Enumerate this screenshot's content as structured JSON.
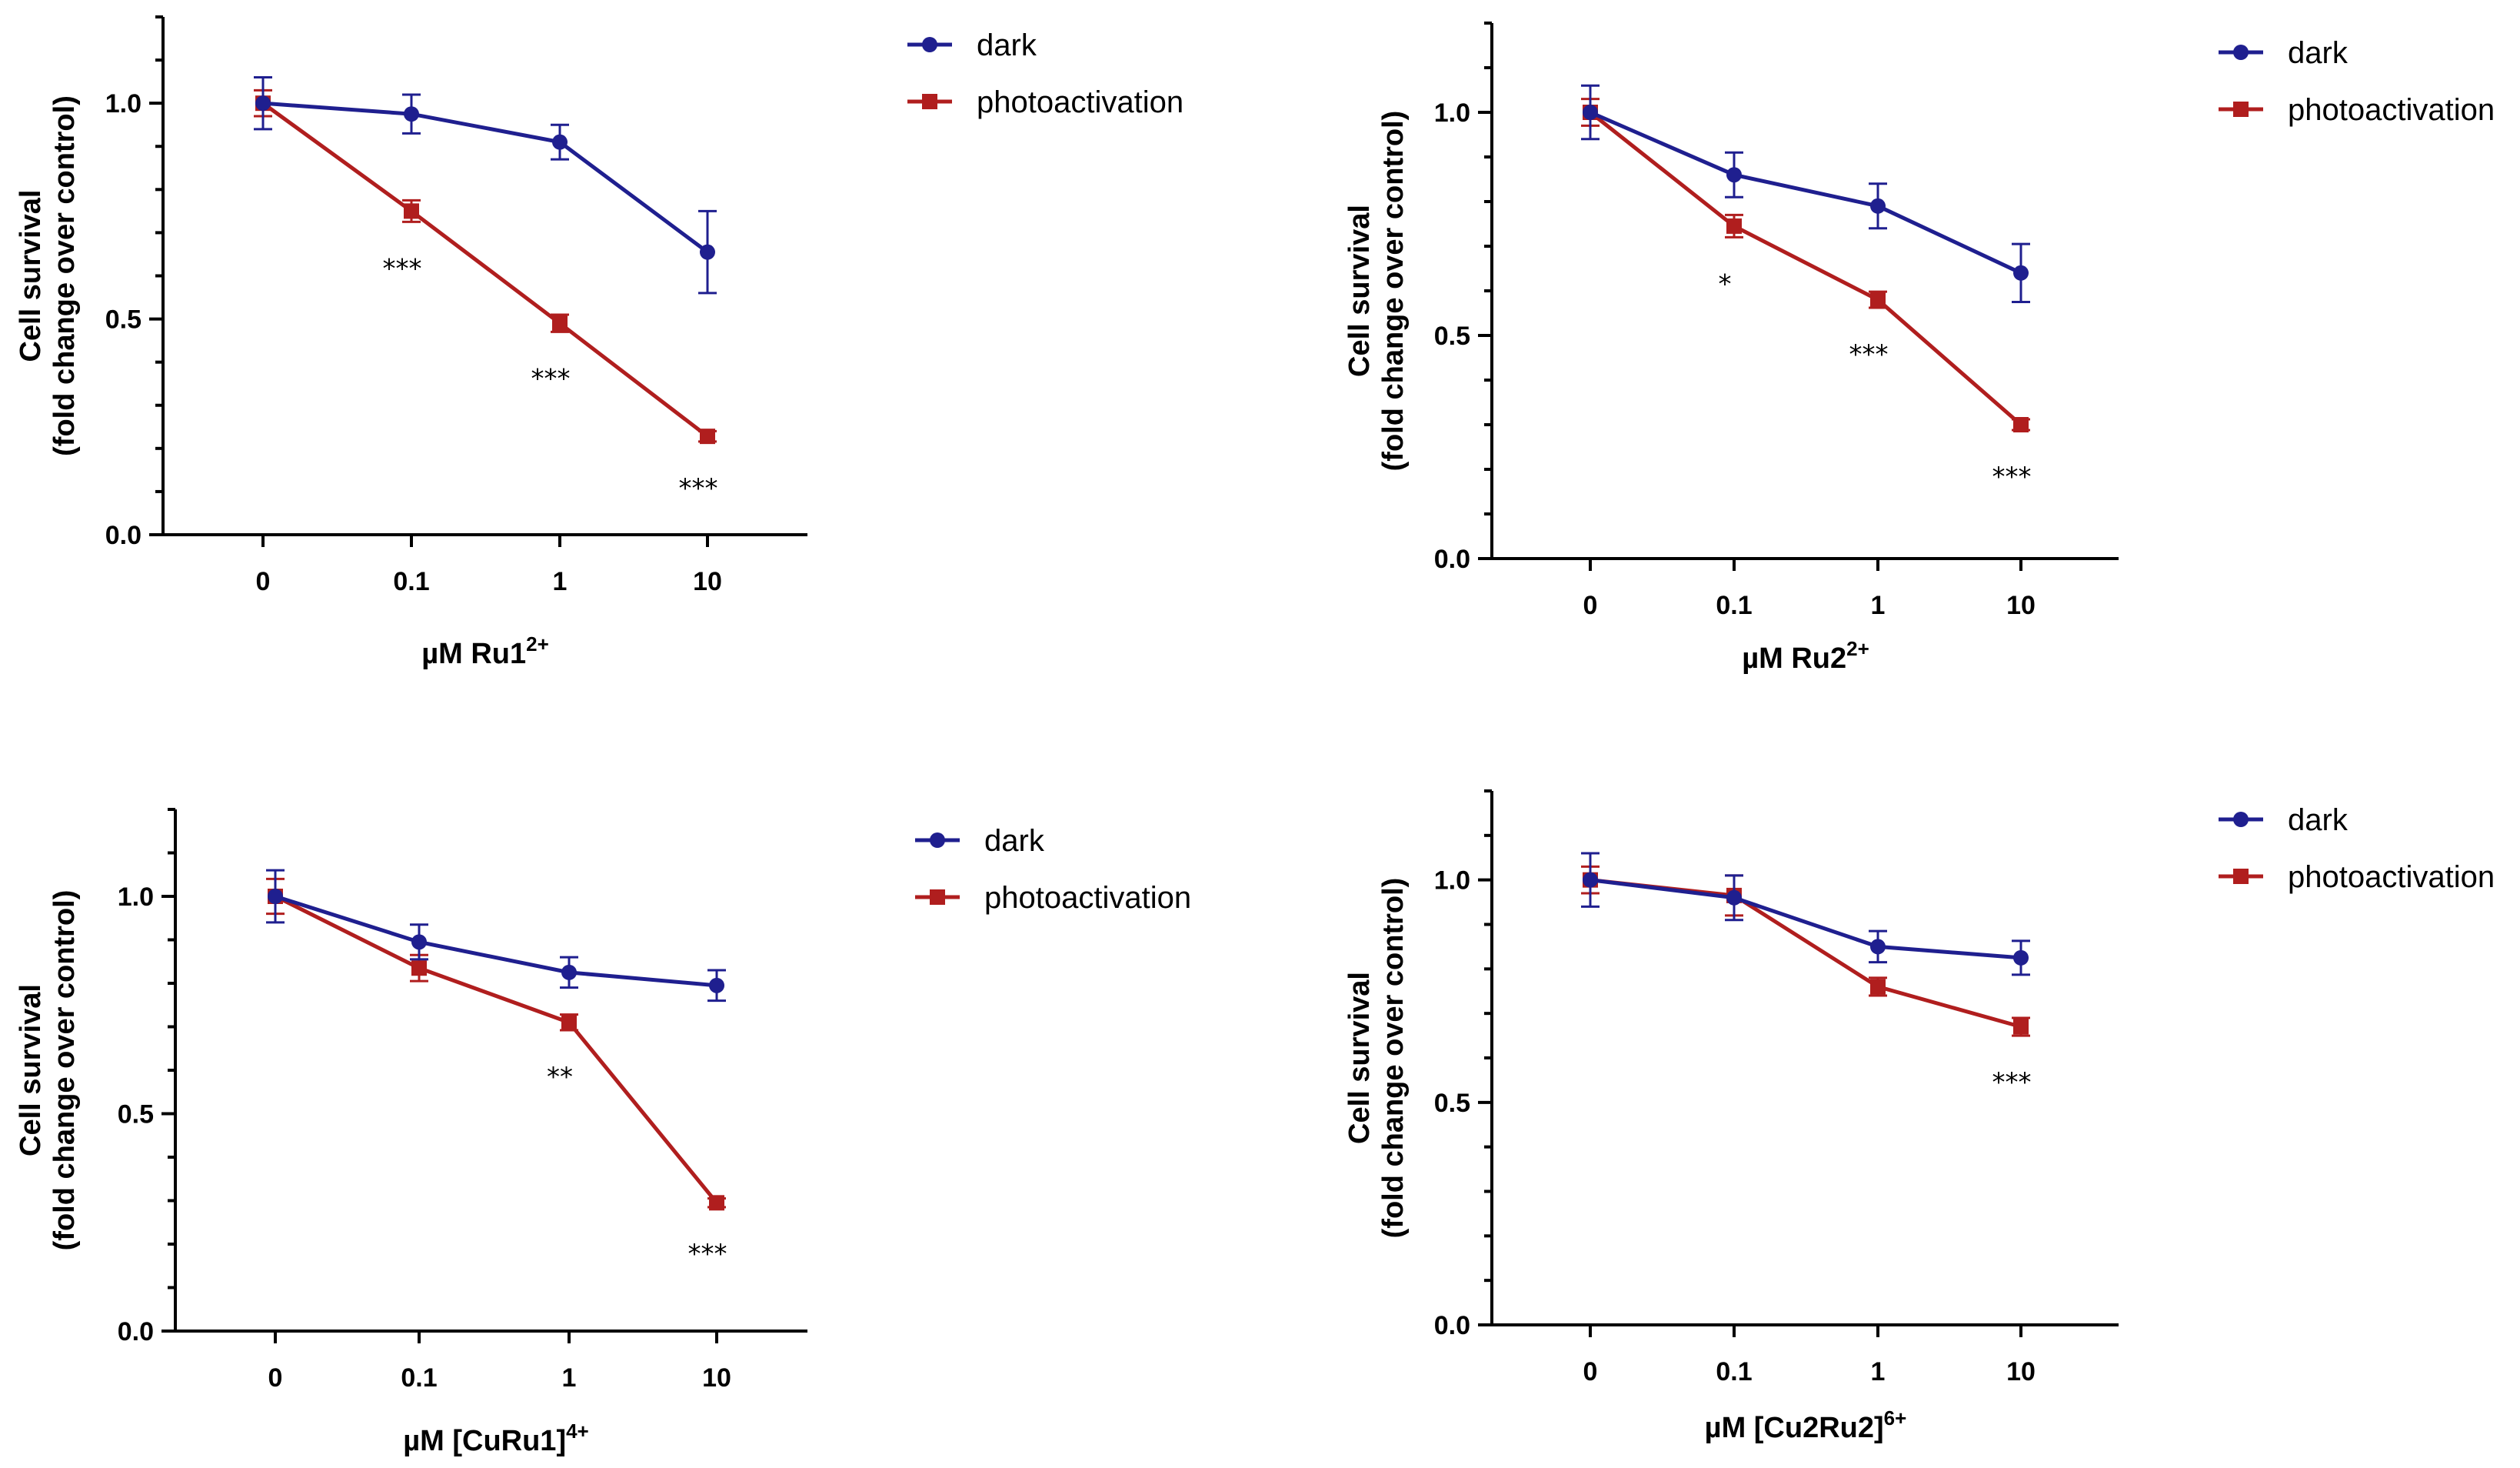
{
  "legend": {
    "dark": "dark",
    "photoactivation": "photoactivation"
  },
  "colors": {
    "dark": "#1f1f8f",
    "photoactivation": "#b01e1e"
  },
  "chart_data": [
    {
      "type": "line",
      "panel": "top-left",
      "categories": [
        "0",
        "0.1",
        "1",
        "10"
      ],
      "series": [
        {
          "name": "dark",
          "values": [
            1.0,
            0.975,
            0.91,
            0.655
          ],
          "errors": [
            0.06,
            0.045,
            0.04,
            0.095
          ]
        },
        {
          "name": "photoactivation",
          "values": [
            1.0,
            0.75,
            0.49,
            0.228
          ],
          "errors": [
            0.03,
            0.025,
            0.02,
            0.012
          ]
        }
      ],
      "annotations": [
        "",
        "***",
        "***",
        "***"
      ],
      "xlabel": "µM Ru1",
      "xlabel_sup": "2+",
      "ylabel_line1": "Cell survival",
      "ylabel_line2": "(fold change over control)",
      "yticks": [
        "0.0",
        "0.5",
        "1.0"
      ],
      "ylim": [
        0,
        1.2
      ],
      "legend_position": "top-right"
    },
    {
      "type": "line",
      "panel": "top-right",
      "categories": [
        "0",
        "0.1",
        "1",
        "10"
      ],
      "series": [
        {
          "name": "dark",
          "values": [
            1.0,
            0.86,
            0.79,
            0.64
          ],
          "errors": [
            0.06,
            0.05,
            0.05,
            0.065
          ]
        },
        {
          "name": "photoactivation",
          "values": [
            1.0,
            0.745,
            0.58,
            0.3
          ],
          "errors": [
            0.03,
            0.025,
            0.018,
            0.012
          ]
        }
      ],
      "annotations": [
        "",
        "*",
        "***",
        "***"
      ],
      "xlabel": "µM Ru2",
      "xlabel_sup": "2+",
      "ylabel_line1": "Cell survival",
      "ylabel_line2": "(fold change over control)",
      "yticks": [
        "0.0",
        "0.5",
        "1.0"
      ],
      "ylim": [
        0,
        1.2
      ],
      "legend_position": "top-right"
    },
    {
      "type": "line",
      "panel": "bottom-left",
      "categories": [
        "0",
        "0.1",
        "1",
        "10"
      ],
      "series": [
        {
          "name": "dark",
          "values": [
            1.0,
            0.895,
            0.825,
            0.795
          ],
          "errors": [
            0.06,
            0.04,
            0.035,
            0.035
          ]
        },
        {
          "name": "photoactivation",
          "values": [
            1.0,
            0.835,
            0.71,
            0.295
          ],
          "errors": [
            0.04,
            0.03,
            0.018,
            0.01
          ]
        }
      ],
      "annotations": [
        "",
        "",
        "**",
        "***"
      ],
      "xlabel": "µM [CuRu1]",
      "xlabel_sup": "4+",
      "ylabel_line1": "Cell survival",
      "ylabel_line2": "(fold change over control)",
      "yticks": [
        "0.0",
        "0.5",
        "1.0"
      ],
      "ylim": [
        0,
        1.2
      ],
      "legend_position": "top-right"
    },
    {
      "type": "line",
      "panel": "bottom-right",
      "categories": [
        "0",
        "0.1",
        "1",
        "10"
      ],
      "series": [
        {
          "name": "dark",
          "values": [
            1.0,
            0.96,
            0.85,
            0.825
          ],
          "errors": [
            0.06,
            0.05,
            0.035,
            0.038
          ]
        },
        {
          "name": "photoactivation",
          "values": [
            1.0,
            0.965,
            0.76,
            0.67
          ],
          "errors": [
            0.03,
            0.045,
            0.02,
            0.02
          ]
        }
      ],
      "annotations": [
        "",
        "",
        "",
        "***"
      ],
      "xlabel": "µM [Cu2Ru2]",
      "xlabel_sup": "6+",
      "ylabel_line1": "Cell survival",
      "ylabel_line2": "(fold change over control)",
      "yticks": [
        "0.0",
        "0.5",
        "1.0"
      ],
      "ylim": [
        0,
        1.2
      ],
      "legend_position": "top-right"
    }
  ]
}
